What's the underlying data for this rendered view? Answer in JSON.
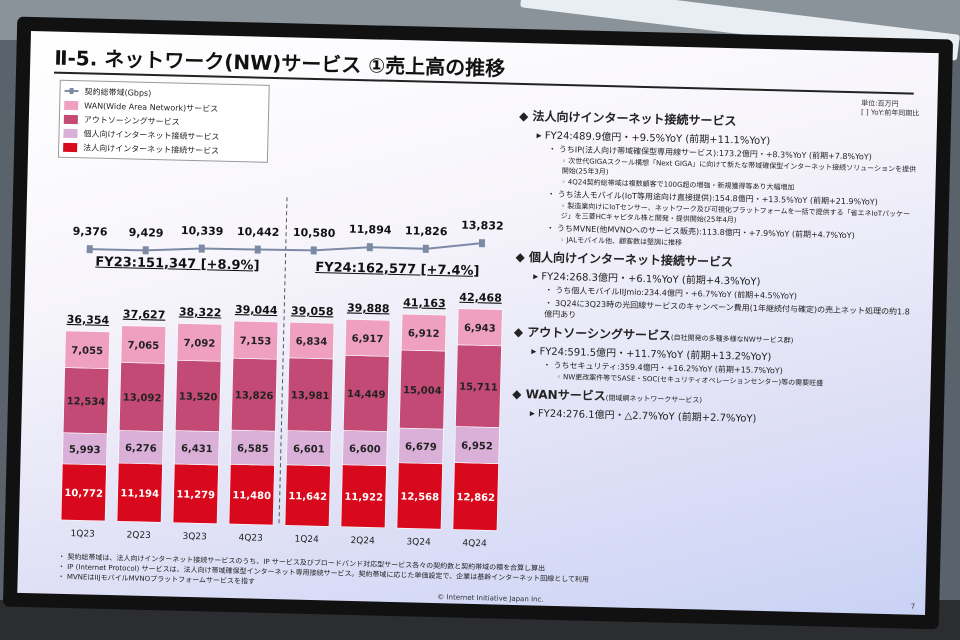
{
  "slide": {
    "title": "Ⅱ-5. ネットワーク(NW)サービス ①売上高の推移",
    "unit_line1": "単位:百万円",
    "unit_line2": "[ ] YoY:前年同期比",
    "legend": [
      {
        "label": "契約総帯域(Gbps)",
        "color": "#7c8aa6"
      },
      {
        "label": "WAN(Wide Area Network)サービス",
        "color": "#ef9fc0"
      },
      {
        "label": "アウトソーシングサービス",
        "color": "#c44a76"
      },
      {
        "label": "個人向けインターネット接続サービス",
        "color": "#dbb0d8"
      },
      {
        "label": "法人向けインターネット接続サービス",
        "color": "#d8091c"
      }
    ],
    "fy23": "FY23:151,347 [+8.9%]",
    "fy24": "FY24:162,577 [+7.4%]",
    "footnotes": [
      "・ 契約総帯域は、法人向けインターネット接続サービスのうち、IP サービス及びブロードバンド対応型サービス各々の契約数と契約帯域の積を合算し算出",
      "・ IP (Internet Protocol) サービスは、法人向け帯域確保型インターネット専用接続サービス。契約帯域に応じた単価設定で、企業は基幹インターネット回線として利用",
      "・ MVNEはIIJモバイルMVNOプラットフォームサービスを指す"
    ],
    "copyright": "© Internet Initiative Japan Inc.",
    "page": "7"
  },
  "chart_data": {
    "type": "bar",
    "categories": [
      "1Q23",
      "2Q23",
      "3Q23",
      "4Q23",
      "1Q24",
      "2Q24",
      "3Q24",
      "4Q24"
    ],
    "series": [
      {
        "name": "法人向けインターネット接続サービス",
        "color": "#d8091c",
        "values": [
          10772,
          11194,
          11279,
          11480,
          11642,
          11922,
          12568,
          12862
        ]
      },
      {
        "name": "個人向けインターネット接続サービス",
        "color": "#dbb0d8",
        "values": [
          5993,
          6276,
          6431,
          6585,
          6601,
          6600,
          6679,
          6952
        ]
      },
      {
        "name": "アウトソーシングサービス",
        "color": "#c44a76",
        "values": [
          12534,
          13092,
          13520,
          13826,
          13981,
          14449,
          15004,
          15711
        ]
      },
      {
        "name": "WAN(Wide Area Network)サービス",
        "color": "#ef9fc0",
        "values": [
          7055,
          7065,
          7092,
          7153,
          6834,
          6917,
          6912,
          6943
        ]
      }
    ],
    "totals": [
      36354,
      37627,
      38322,
      39044,
      39058,
      39888,
      41163,
      42468
    ],
    "line": {
      "name": "契約総帯域(Gbps)",
      "values": [
        9376,
        9429,
        10339,
        10442,
        10580,
        11894,
        11826,
        13832
      ]
    },
    "stacked": true
  },
  "right": [
    {
      "kind": "h",
      "text": "法人向けインターネット接続サービス"
    },
    {
      "kind": "l1",
      "text": "FY24:489.9億円・+9.5%YoY (前期+11.1%YoY)"
    },
    {
      "kind": "l2",
      "text": "うちIP(法人向け帯域確保型専用線サービス):173.2億円・+8.3%YoY (前期+7.8%YoY)"
    },
    {
      "kind": "l3",
      "text": "次世代GIGAスクール構想「Next GIGA」に向けて新たな帯域確保型インターネット接続ソリューションを提供開始(25年3月)"
    },
    {
      "kind": "l3",
      "text": "4Q24契約総帯域は複数顧客で100G超の増強・新規獲得等あり大幅増加"
    },
    {
      "kind": "l2",
      "text": "うち法人モバイル(IoT等用途向け直接提供):154.8億円・+13.5%YoY (前期+21.9%YoY)"
    },
    {
      "kind": "l3",
      "text": "製造業向けにIoTセンサー、ネットワーク及び可視化プラットフォームを一括で提供する「省エネIoTパッケージ」を三菱HCキャピタル株と開発・提供開始(25年4月)"
    },
    {
      "kind": "l2",
      "text": "うちMVNE(他MVNOへのサービス販売):113.8億円・+7.9%YoY (前期+4.7%YoY)"
    },
    {
      "kind": "l3",
      "text": "JALモバイル他、顧客数は堅調に推移"
    },
    {
      "kind": "h",
      "text": "個人向けインターネット接続サービス"
    },
    {
      "kind": "l1",
      "text": "FY24:268.3億円・+6.1%YoY (前期+4.3%YoY)"
    },
    {
      "kind": "l2",
      "text": "うち個人モバイルIIJmio:234.4億円・+6.7%YoY (前期+4.5%YoY)"
    },
    {
      "kind": "l2",
      "text": "3Q24に3Q23時の光回線サービスのキャンペーン費用(1年継続付与確定)の売上ネット処理の約1.8億円あり"
    },
    {
      "kind": "h",
      "text": "アウトソーシングサービス",
      "sub": "(自社開発の多種多様なNWサービス群)"
    },
    {
      "kind": "l1",
      "text": "FY24:591.5億円・+11.7%YoY (前期+13.2%YoY)"
    },
    {
      "kind": "l2",
      "text": "うちセキュリティ:359.4億円・+16.2%YoY (前期+15.7%YoY)"
    },
    {
      "kind": "l3",
      "text": "NW更改案件等でSASE・SOC(セキュリティオペレーションセンター)等の需要旺盛"
    },
    {
      "kind": "h",
      "text": "WANサービス",
      "sub": "(閉域網ネットワークサービス)"
    },
    {
      "kind": "l1",
      "text": "FY24:276.1億円・△2.7%YoY (前期+2.7%YoY)"
    }
  ]
}
